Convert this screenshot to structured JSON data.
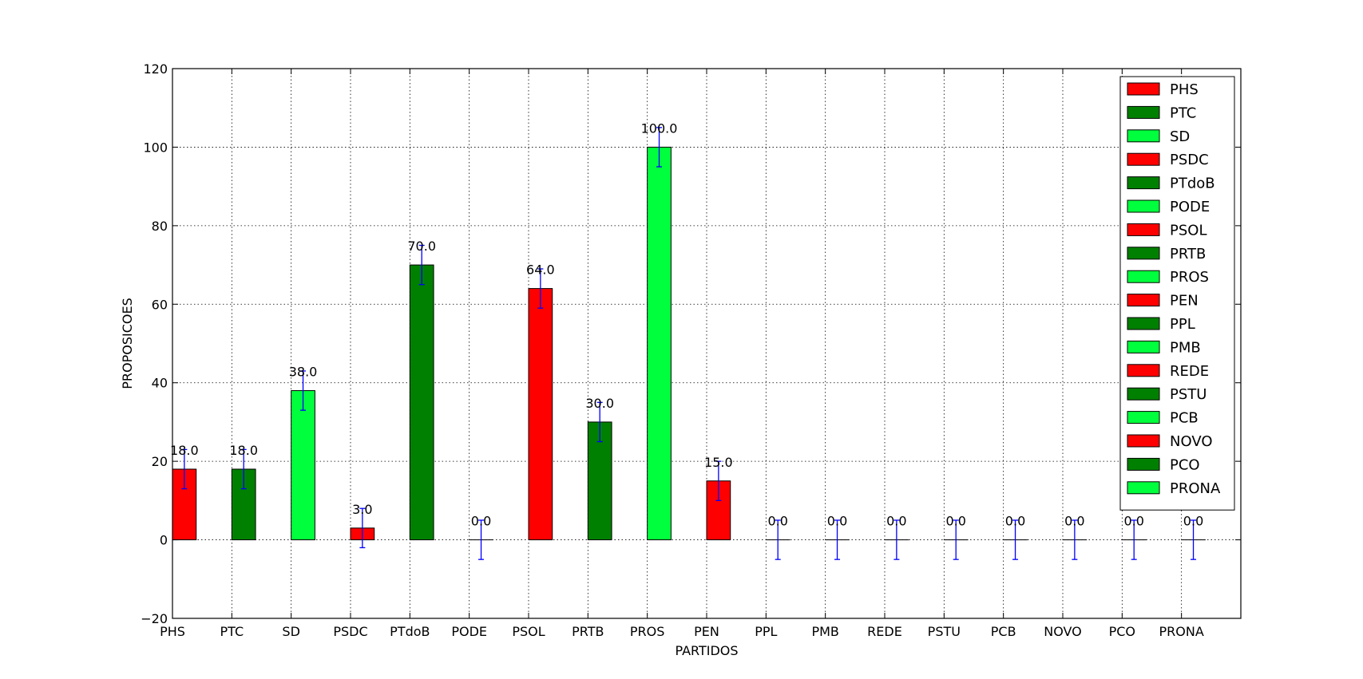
{
  "chart_data": {
    "type": "bar",
    "title": "",
    "xlabel": "PARTIDOS",
    "ylabel": "PROPOSICOES",
    "ylim": [
      -20,
      120
    ],
    "yticks": [
      "−20",
      "0",
      "20",
      "40",
      "60",
      "80",
      "100",
      "120"
    ],
    "ytick_values": [
      -20,
      0,
      20,
      40,
      60,
      80,
      100,
      120
    ],
    "grid": true,
    "legend_position": "top-right",
    "error": 5,
    "colors": {
      "red": "#ff0000",
      "green": "#008000",
      "lime": "#00ff3c",
      "errorbar": "#0000ff"
    },
    "categories": [
      "PHS",
      "PTC",
      "SD",
      "PSDC",
      "PTdoB",
      "PODE",
      "PSOL",
      "PRTB",
      "PROS",
      "PEN",
      "PPL",
      "PMB",
      "REDE",
      "PSTU",
      "PCB",
      "NOVO",
      "PCO",
      "PRONA"
    ],
    "values": [
      18,
      18,
      38,
      3,
      70,
      0,
      64,
      30,
      100,
      15,
      0,
      0,
      0,
      0,
      0,
      0,
      0,
      0
    ],
    "value_labels": [
      "18.0",
      "18.0",
      "38.0",
      "3.0",
      "70.0",
      "0.0",
      "64.0",
      "30.0",
      "100.0",
      "15.0",
      "0.0",
      "0.0",
      "0.0",
      "0.0",
      "0.0",
      "0.0",
      "0.0",
      "0.0"
    ],
    "bar_colors": [
      "#ff0000",
      "#008000",
      "#00ff3c",
      "#ff0000",
      "#008000",
      "#00ff3c",
      "#ff0000",
      "#008000",
      "#00ff3c",
      "#ff0000",
      "#008000",
      "#00ff3c",
      "#ff0000",
      "#008000",
      "#00ff3c",
      "#ff0000",
      "#008000",
      "#00ff3c"
    ],
    "legend": [
      "PHS",
      "PTC",
      "SD",
      "PSDC",
      "PTdoB",
      "PODE",
      "PSOL",
      "PRTB",
      "PROS",
      "PEN",
      "PPL",
      "PMB",
      "REDE",
      "PSTU",
      "PCB",
      "NOVO",
      "PCO",
      "PRONA"
    ]
  }
}
